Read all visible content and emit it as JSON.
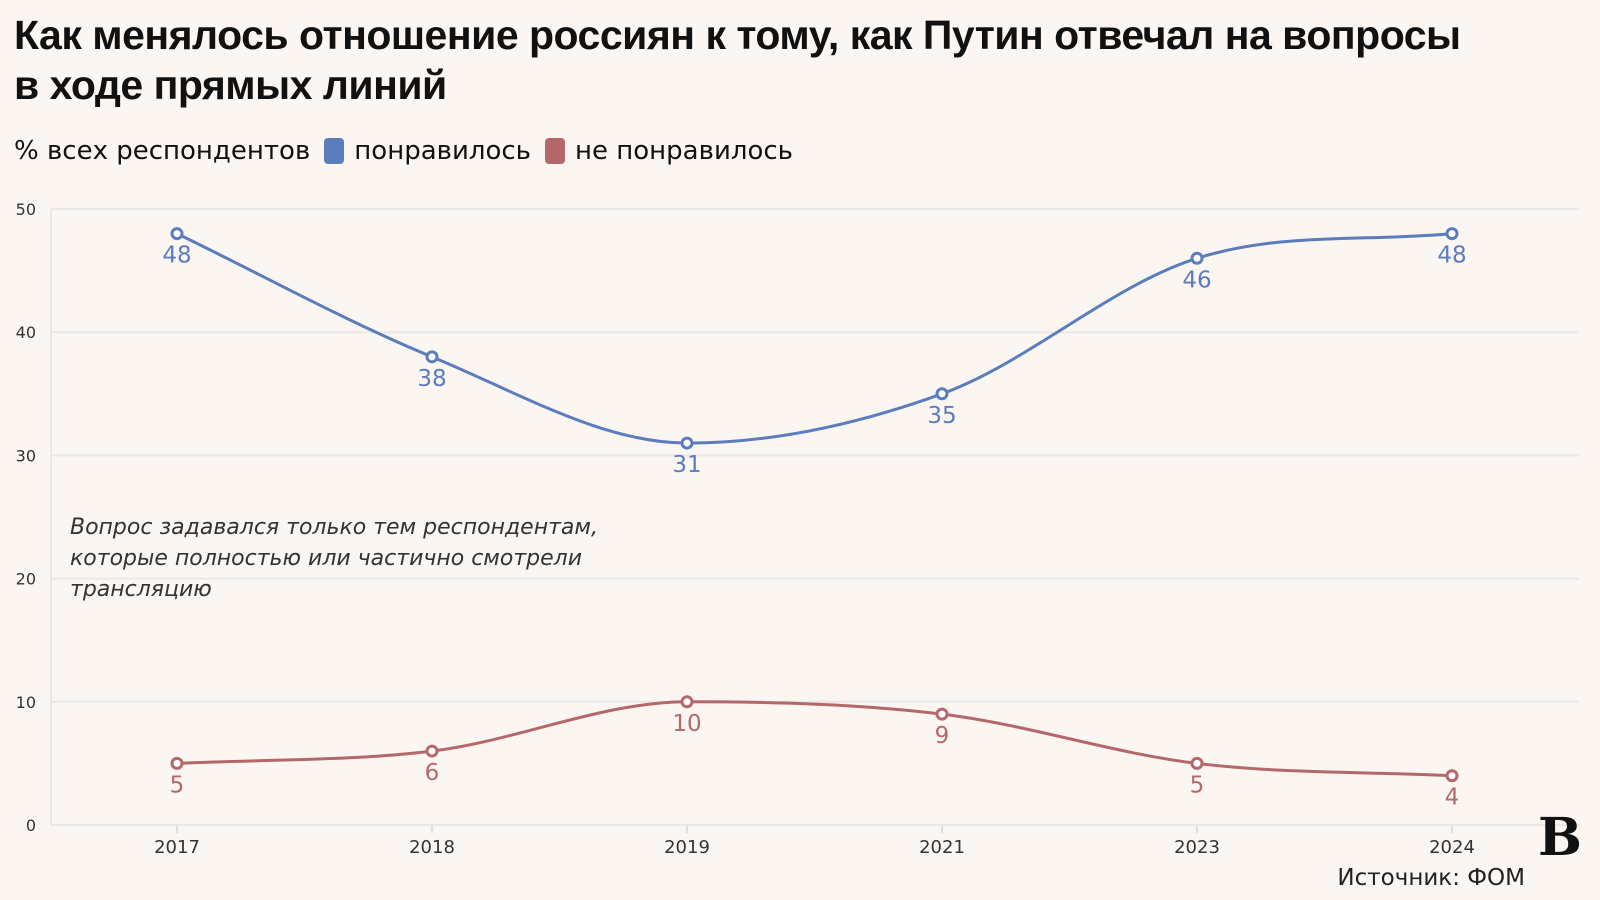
{
  "title": "Как менялось отношение россиян к тому, как Путин отвечал на вопросы в ходе прямых линий",
  "legend_prefix": "% всех респондентов",
  "note": "Вопрос задавался только тем респондентам, которые полностью или частично смотрели трансляцию",
  "source": "Источник: ФОМ",
  "logo": "В",
  "chart_data": {
    "type": "line",
    "categories": [
      "2017",
      "2018",
      "2019",
      "2021",
      "2023",
      "2024"
    ],
    "ylim": [
      0,
      50
    ],
    "yticks": [
      0,
      10,
      20,
      30,
      40,
      50
    ],
    "grid": true,
    "legend_position": "top-left",
    "series": [
      {
        "name": "понравилось",
        "color": "#5b7dbd",
        "values": [
          48,
          38,
          31,
          35,
          46,
          48
        ]
      },
      {
        "name": "не понравилось",
        "color": "#b5686a",
        "values": [
          5,
          6,
          10,
          9,
          5,
          4
        ]
      }
    ]
  }
}
